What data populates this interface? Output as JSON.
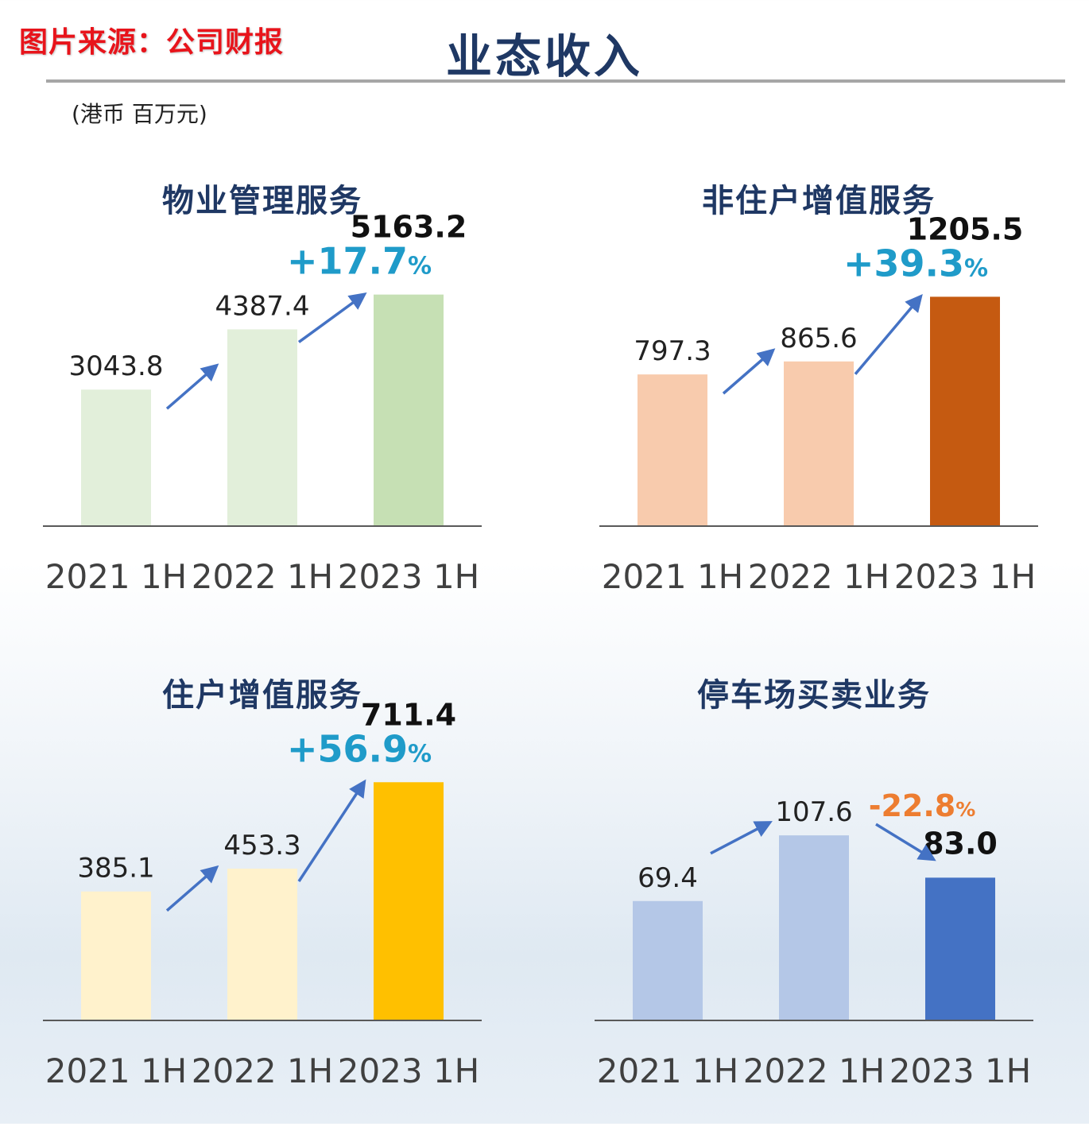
{
  "header": {
    "source_note": "图片来源：公司财报",
    "title": "业态收入",
    "unit": "(港币 百万元)"
  },
  "colors": {
    "title": "#1f3864",
    "growth_positive": "#1f9bc9",
    "growth_negative": "#ed7d31",
    "arrow": "#4472c4",
    "axis": "#595959"
  },
  "chart_data": [
    {
      "type": "bar",
      "title": "物业管理服务",
      "categories": [
        "2021 1H",
        "2022 1H",
        "2023 1H"
      ],
      "values": [
        3043.8,
        4387.4,
        5163.2
      ],
      "value_labels": [
        "3043.8",
        "4387.4",
        "5163.2"
      ],
      "bar_colors": [
        "#e2efda",
        "#e2efda",
        "#c6e0b4"
      ],
      "growth": {
        "number": "+17.7",
        "pct": "%",
        "trend": "up"
      },
      "ylim": [
        0,
        5600
      ]
    },
    {
      "type": "bar",
      "title": "非住户增值服务",
      "categories": [
        "2021 1H",
        "2022 1H",
        "2023 1H"
      ],
      "values": [
        797.3,
        865.6,
        1205.5
      ],
      "value_labels": [
        "797.3",
        "865.6",
        "1205.5"
      ],
      "bar_colors": [
        "#f8cbad",
        "#f8cbad",
        "#c55a11"
      ],
      "growth": {
        "number": "+39.3",
        "pct": "%",
        "trend": "up"
      },
      "ylim": [
        0,
        1320
      ]
    },
    {
      "type": "bar",
      "title": "住户增值服务",
      "categories": [
        "2021 1H",
        "2022 1H",
        "2023 1H"
      ],
      "values": [
        385.1,
        453.3,
        711.4
      ],
      "value_labels": [
        "385.1",
        "453.3",
        "711.4"
      ],
      "bar_colors": [
        "#fff2cc",
        "#fff2cc",
        "#ffc000"
      ],
      "growth": {
        "number": "+56.9",
        "pct": "%",
        "trend": "up"
      },
      "ylim": [
        0,
        750
      ]
    },
    {
      "type": "bar",
      "title": "停车场买卖业务",
      "categories": [
        "2021 1H",
        "2022 1H",
        "2023 1H"
      ],
      "values": [
        69.4,
        107.6,
        83.0
      ],
      "value_labels": [
        "69.4",
        "107.6",
        "83.0"
      ],
      "bar_colors": [
        "#b4c7e7",
        "#b4c7e7",
        "#4472c4"
      ],
      "growth": {
        "number": "-22.8",
        "pct": "%",
        "trend": "down"
      },
      "ylim": [
        0,
        146
      ]
    }
  ]
}
